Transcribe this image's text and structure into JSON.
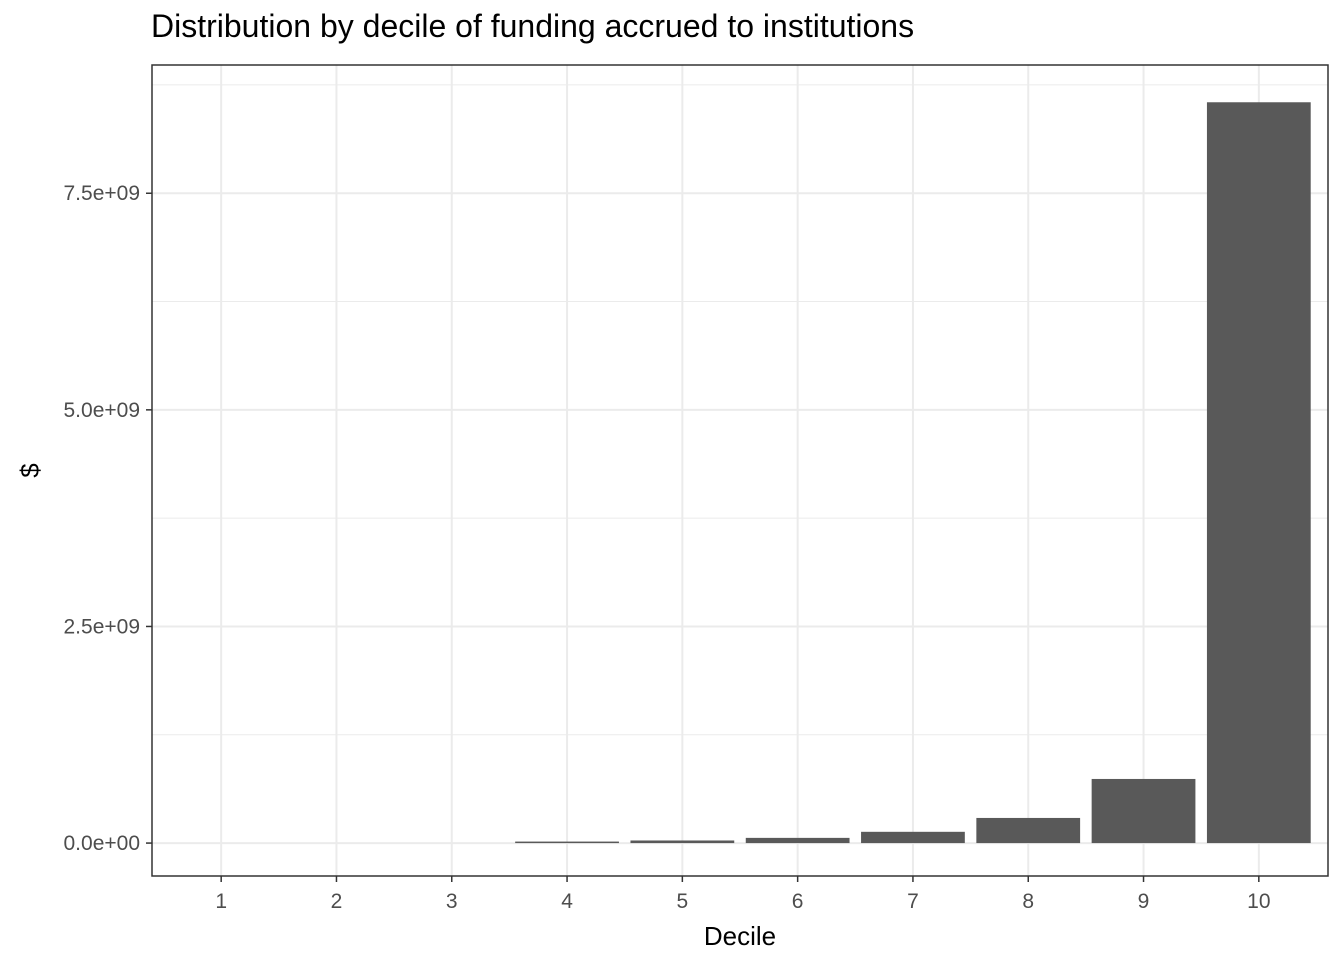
{
  "chart_data": {
    "type": "bar",
    "title": "Distribution by decile of funding accrued to institutions",
    "xlabel": "Decile",
    "ylabel": "$",
    "categories": [
      "1",
      "2",
      "3",
      "4",
      "5",
      "6",
      "7",
      "8",
      "9",
      "10"
    ],
    "values": [
      0,
      0,
      0,
      10000000,
      30000000,
      60000000,
      130000000,
      290000000,
      740000000,
      8550000000
    ],
    "ylim": [
      -380000000,
      8980000000
    ],
    "y_ticks": [
      0,
      2500000000,
      5000000000,
      7500000000
    ],
    "y_tick_labels": [
      "0.0e+00",
      "2.5e+09",
      "5.0e+09",
      "7.5e+09"
    ],
    "grid": true,
    "legend": "none",
    "colors": {
      "bar": "#595959",
      "grid": "#ebebeb",
      "panel_border": "#333333",
      "background": "#ffffff"
    }
  }
}
